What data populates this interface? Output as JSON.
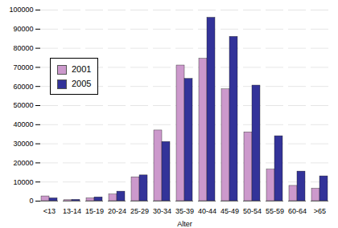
{
  "chart_data": {
    "type": "bar",
    "x_label": "Alter",
    "categories": [
      "<13",
      "13-14",
      "15-19",
      "20-24",
      "25-29",
      "30-34",
      "35-39",
      "40-44",
      "45-49",
      "50-54",
      "55-59",
      "60-64",
      ">65"
    ],
    "series": [
      {
        "name": "2001",
        "color": "#cc99cc",
        "values": [
          2500,
          500,
          1500,
          3500,
          12500,
          37000,
          71000,
          74500,
          58500,
          36000,
          16500,
          8000,
          6500
        ]
      },
      {
        "name": "2005",
        "color": "#333399",
        "values": [
          1500,
          700,
          2000,
          5000,
          13500,
          31000,
          64000,
          96000,
          86000,
          60500,
          34000,
          15500,
          13000
        ]
      }
    ],
    "ylim": [
      0,
      100000
    ],
    "yticks": [
      0,
      10000,
      20000,
      30000,
      40000,
      50000,
      60000,
      70000,
      80000,
      90000,
      100000
    ],
    "grid": true,
    "legend": "top-left"
  }
}
